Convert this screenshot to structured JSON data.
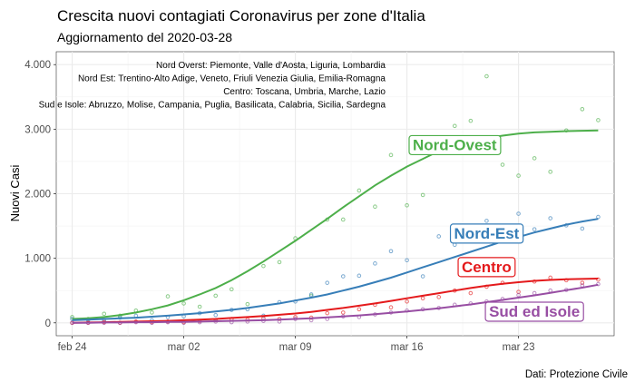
{
  "chart_data": {
    "type": "scatter",
    "title": "Crescita nuovi contagiati Coronavirus per zone d'Italia",
    "subtitle": "Aggiornamento del 2020-03-28",
    "xlabel": "",
    "ylabel": "Nuovi Casi",
    "caption": "Dati: Protezione Civile",
    "xlim": [
      "2020-02-23",
      "2020-03-29"
    ],
    "ylim": [
      -200,
      4200
    ],
    "grid": true,
    "legend": "none",
    "x_ticks": [
      {
        "date": "2020-02-24",
        "label": "feb 24"
      },
      {
        "date": "2020-03-02",
        "label": "mar 02"
      },
      {
        "date": "2020-03-09",
        "label": "mar 09"
      },
      {
        "date": "2020-03-16",
        "label": "mar 16"
      },
      {
        "date": "2020-03-23",
        "label": "mar 23"
      }
    ],
    "y_ticks": [
      {
        "value": 0,
        "label": "0"
      },
      {
        "value": 1000,
        "label": "1.000"
      },
      {
        "value": 2000,
        "label": "2.000"
      },
      {
        "value": 3000,
        "label": "3.000"
      },
      {
        "value": 4000,
        "label": "4.000"
      }
    ],
    "notes": [
      "Nord Overst: Piemonte, Valle d'Aosta, Liguria, Lombardia",
      "Nord Est: Trentino-Alto Adige, Veneto, Friuli Venezia Giulia, Emilia-Romagna",
      "Centro: Toscana, Umbria, Marche, Lazio",
      "Sud e Isole: Abruzzo, Molise, Campania, Puglia, Basilicata, Calabria, Sicilia, Sardegna"
    ],
    "dates": [
      "2020-02-24",
      "2020-02-25",
      "2020-02-26",
      "2020-02-27",
      "2020-02-28",
      "2020-02-29",
      "2020-03-01",
      "2020-03-02",
      "2020-03-03",
      "2020-03-04",
      "2020-03-05",
      "2020-03-06",
      "2020-03-07",
      "2020-03-08",
      "2020-03-09",
      "2020-03-10",
      "2020-03-11",
      "2020-03-12",
      "2020-03-13",
      "2020-03-14",
      "2020-03-15",
      "2020-03-16",
      "2020-03-17",
      "2020-03-18",
      "2020-03-19",
      "2020-03-20",
      "2020-03-21",
      "2020-03-22",
      "2020-03-23",
      "2020-03-24",
      "2020-03-25",
      "2020-03-26",
      "2020-03-27",
      "2020-03-28"
    ],
    "series": [
      {
        "name": "Nord-Ovest",
        "color": "#4daf4a",
        "label_anchor": {
          "date": "2020-03-19",
          "value": 2760
        },
        "points": [
          90,
          60,
          140,
          110,
          190,
          160,
          410,
          300,
          250,
          420,
          520,
          290,
          880,
          940,
          1310,
          420,
          1600,
          1600,
          2050,
          1800,
          2600,
          1820,
          1980,
          2720,
          3050,
          3130,
          3820,
          2450,
          2280,
          2550,
          2340,
          2980,
          3310,
          3140
        ],
        "smooth": [
          60,
          70,
          90,
          120,
          160,
          210,
          270,
          350,
          440,
          540,
          660,
          800,
          950,
          1110,
          1270,
          1440,
          1610,
          1790,
          1960,
          2130,
          2280,
          2420,
          2540,
          2660,
          2740,
          2810,
          2860,
          2900,
          2930,
          2950,
          2960,
          2970,
          2975,
          2980
        ]
      },
      {
        "name": "Nord-Est",
        "color": "#377eb8",
        "label_anchor": {
          "date": "2020-03-21",
          "value": 1390
        },
        "points": [
          60,
          40,
          30,
          80,
          110,
          40,
          90,
          100,
          150,
          120,
          200,
          210,
          110,
          320,
          330,
          440,
          620,
          720,
          730,
          920,
          1110,
          970,
          720,
          1340,
          1210,
          1430,
          1580,
          1380,
          1690,
          1450,
          1620,
          1510,
          1460,
          1640
        ],
        "smooth": [
          40,
          50,
          60,
          70,
          80,
          95,
          110,
          130,
          150,
          175,
          200,
          230,
          265,
          300,
          345,
          390,
          440,
          500,
          560,
          630,
          700,
          780,
          860,
          940,
          1020,
          1100,
          1180,
          1260,
          1330,
          1400,
          1460,
          1520,
          1570,
          1610
        ]
      },
      {
        "name": "Centro",
        "color": "#e41a1c",
        "label_anchor": {
          "date": "2020-03-21",
          "value": 870
        },
        "points": [
          0,
          0,
          10,
          0,
          20,
          10,
          20,
          10,
          30,
          40,
          60,
          50,
          70,
          60,
          90,
          80,
          150,
          160,
          210,
          280,
          240,
          330,
          380,
          400,
          500,
          460,
          560,
          620,
          480,
          640,
          700,
          660,
          620,
          670
        ],
        "smooth": [
          0,
          5,
          10,
          15,
          20,
          25,
          30,
          40,
          50,
          60,
          75,
          90,
          105,
          125,
          145,
          170,
          200,
          230,
          265,
          300,
          340,
          380,
          420,
          460,
          500,
          540,
          575,
          605,
          630,
          650,
          665,
          675,
          680,
          685
        ]
      },
      {
        "name": "Sud ed Isole",
        "color": "#984ea3",
        "label_anchor": {
          "date": "2020-03-24",
          "value": 180
        },
        "points": [
          0,
          0,
          0,
          0,
          10,
          0,
          10,
          0,
          10,
          20,
          10,
          20,
          30,
          20,
          60,
          40,
          60,
          100,
          90,
          130,
          160,
          190,
          210,
          230,
          280,
          300,
          330,
          370,
          430,
          460,
          500,
          510,
          580,
          600
        ],
        "smooth": [
          0,
          0,
          5,
          5,
          10,
          10,
          15,
          15,
          20,
          25,
          30,
          35,
          40,
          50,
          60,
          70,
          85,
          100,
          115,
          135,
          155,
          175,
          200,
          225,
          255,
          285,
          320,
          355,
          390,
          425,
          465,
          505,
          545,
          590
        ]
      }
    ]
  }
}
